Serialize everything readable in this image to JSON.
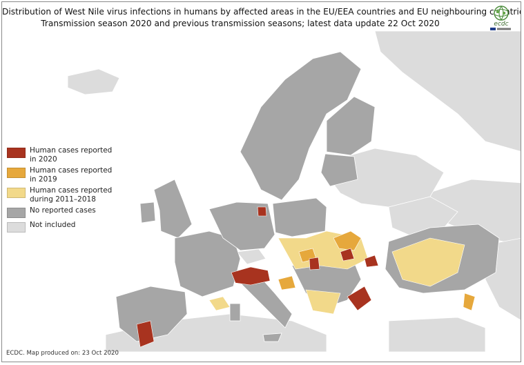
{
  "title": {
    "line1": "Distribution of West Nile virus infections in humans by affected areas in the EU/EEA countries and EU neighbouring countries",
    "line2": "Transmission season 2020 and previous transmission seasons; latest data update 22 Oct 2020"
  },
  "logo": {
    "text": "ecdc",
    "icon": "ecdc-globe-logo"
  },
  "legend": [
    {
      "label": "Human cases reported in 2020",
      "color": "#a8331f"
    },
    {
      "label": "Human cases reported in 2019",
      "color": "#e6a83c"
    },
    {
      "label": "Human cases reported during 2011–2018",
      "color": "#f2d98a"
    },
    {
      "label": "No reported cases",
      "color": "#a6a6a6"
    },
    {
      "label": "Not included",
      "color": "#dcdcdc"
    }
  ],
  "footer": "ECDC. Map produced on: 23 Oct 2020",
  "colors": {
    "sea": "#ffffff",
    "reported_2020": "#a8331f",
    "reported_2019": "#e6a83c",
    "reported_2011_2018": "#f2d98a",
    "no_cases": "#a6a6a6",
    "not_included": "#dcdcdc"
  }
}
